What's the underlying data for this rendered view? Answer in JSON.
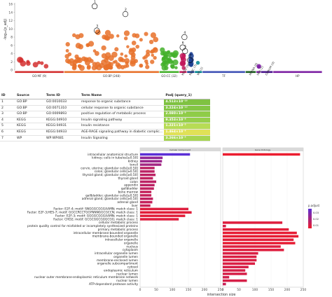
{
  "manhattan": {
    "ylabel": "-log₁₀(p_adj)",
    "yticks": [
      0,
      2,
      4,
      6,
      8,
      10,
      12,
      14,
      16
    ],
    "ymax": 16,
    "sources": [
      {
        "label": "GO:MF (9)",
        "color": "#d32f2f",
        "start": 0.0,
        "end": 0.16
      },
      {
        "label": "GO:BP (248)",
        "color": "#e8712a",
        "start": 0.16,
        "end": 0.47
      },
      {
        "label": "GO:CC (32)",
        "color": "#43b02a",
        "start": 0.47,
        "end": 0.535
      },
      {
        "label": "KEGG (9)",
        "color": "#c2185b",
        "start": 0.535,
        "end": 0.56
      },
      {
        "label": "REAC (7)",
        "color": "#1a3d8f",
        "start": 0.56,
        "end": 0.585
      },
      {
        "label": "WP (1)",
        "color": "#00838f",
        "start": 0.585,
        "end": 0.61
      },
      {
        "label": "TF",
        "color": "#3f51b5",
        "start": 0.61,
        "end": 0.75
      },
      {
        "label": "MIRNA (0)",
        "color": "#1b5e20",
        "start": 0.75,
        "end": 0.785
      },
      {
        "label": "HPA (1)",
        "color": "#7b1fa2",
        "start": 0.785,
        "end": 0.8
      },
      {
        "label": "CORUM (0)",
        "color": "#4a148c",
        "start": 0.8,
        "end": 0.84
      },
      {
        "label": "HP",
        "color": "#7b1fa2",
        "start": 0.84,
        "end": 1.0
      }
    ],
    "highlights": [
      {
        "label": "1",
        "x": 0.26,
        "y": 15.5
      },
      {
        "label": "2",
        "x": 0.36,
        "y": 13.6
      },
      {
        "label": "3",
        "x": 0.267,
        "y": 9.6
      },
      {
        "label": "4",
        "x": 0.552,
        "y": 8.0
      },
      {
        "label": "5",
        "x": 0.554,
        "y": 4.6
      },
      {
        "label": "6",
        "x": 0.546,
        "y": 5.5
      },
      {
        "label": "7",
        "x": 0.57,
        "y": 2.4
      }
    ]
  },
  "table": {
    "headers": [
      "ID",
      "Source",
      "Term ID",
      "Term Name",
      "Padj (query_1)"
    ],
    "rows": [
      {
        "id": "1",
        "source": "GO:BP",
        "term_id": "GO:0010033",
        "name": "response to organic substance",
        "padj": "4.513×10⁻¹⁶",
        "color": "#7fc241"
      },
      {
        "id": "2",
        "source": "GO:BP",
        "term_id": "GO:0071310",
        "name": "cellular response to organic substance",
        "padj": "3.224×10⁻¹³",
        "color": "#84c645"
      },
      {
        "id": "3",
        "source": "GO:BP",
        "term_id": "GO:0009893",
        "name": "positive regulation of metabolic process",
        "padj": "2.080×10⁻⁹",
        "color": "#8fcc48"
      },
      {
        "id": "4",
        "source": "KEGG",
        "term_id": "KEGG:04910",
        "name": "Insulin signaling pathway",
        "padj": "9.353×10⁻⁹",
        "color": "#96cf4a"
      },
      {
        "id": "5",
        "source": "KEGG",
        "term_id": "KEGG:04931",
        "name": "Insulin resistance",
        "padj": "1.221×10⁻⁵",
        "color": "#b7dc55"
      },
      {
        "id": "6",
        "source": "KEGG",
        "term_id": "KEGG:04933",
        "name": "AGE-RAGE signaling pathway in diabetic complic…",
        "padj": "1.464×10⁻⁴",
        "color": "#e0e157"
      },
      {
        "id": "7",
        "source": "WP",
        "term_id": "WP:WP481",
        "name": "Insulin Signaling",
        "padj": "3.266×10⁻⁴",
        "color": "#a6d551"
      }
    ]
  },
  "chart_data": {
    "type": "bar",
    "title": "",
    "xlabel": "intersection size",
    "facets": [
      "Cellular Component",
      "Gene Ontology"
    ],
    "xlim": [
      0,
      250
    ],
    "xticks": [
      0,
      50,
      100,
      150,
      200,
      250
    ],
    "legend": {
      "title": "p.adjust",
      "position": "right",
      "ticks": [
        "0.01",
        "0.02",
        "0.03"
      ],
      "low_color": "#ef1c2a",
      "high_color": "#5b2fd6"
    },
    "categories": [
      "intracellular anatomical structure",
      "kidney; cells in tubules[≥0.50]",
      "kidney",
      "tonsil",
      "cervix, uterine; glandular cells[≥0.50]",
      "colon; glandular cells[≥0.50]",
      "thyroid gland; glandular cells[≥0.50]",
      "thyroid gland",
      "colon",
      "appendix",
      "gallbladder",
      "bone marrow",
      "gallbladder; glandular cells[≥0.50]",
      "adrenal gland; glandular cells[≥0.50]",
      "adrenal gland",
      "liver",
      "Factor: E2F-4; motif: SNGGGCGGGAAMN; match class: 1",
      "Factor: E2F-3;HES-7; motif: GGCCRCCTGGYNNNGGCGCCN; match class: 1",
      "Factor: E2F-3; motif: GGGGCGGGAAMN; match class: 1",
      "Factor: CHD2; motif: GCGCGGCGGGCGG; match class: 1",
      "cellular metabolic process",
      "protein quality control for misfolded or incompletely synthesized proteins",
      "primary metabolic process",
      "intracellular membrane-bounded organelle",
      "membrane-bounded organelle",
      "intracellular organelle",
      "organelle",
      "nucleus",
      "cytoplasm",
      "intracellular organelle lumen",
      "organelle lumen",
      "membrane-enclosed lumen",
      "organelle subcompartment",
      "cytosol",
      "endoplasmic reticulum",
      "nuclear lumen",
      "nuclear outer membrane-endoplasmic reticulum membrane network",
      "nuclear lumen",
      "ATP-dependent protease activity"
    ],
    "series": [
      {
        "name": "Cellular Component",
        "values": [
          155,
          70,
          68,
          66,
          45,
          45,
          48,
          40,
          50,
          45,
          43,
          35,
          35,
          40,
          38,
          32,
          150,
          160,
          140,
          120,
          0,
          0,
          0,
          0,
          0,
          0,
          0,
          0,
          0,
          0,
          0,
          0,
          0,
          0,
          0,
          0,
          0,
          0,
          0
        ],
        "p_adjust": [
          0.035,
          0.022,
          0.02,
          0.018,
          0.012,
          0.012,
          0.012,
          0.011,
          0.012,
          0.012,
          0.011,
          0.01,
          0.01,
          0.011,
          0.01,
          0.009,
          0.004,
          0.003,
          0.003,
          0.004,
          0,
          0,
          0,
          0,
          0,
          0,
          0,
          0,
          0,
          0,
          0,
          0,
          0,
          0,
          0,
          0,
          0,
          0,
          0
        ]
      },
      {
        "name": "Gene Ontology",
        "values": [
          240,
          0,
          0,
          0,
          0,
          0,
          0,
          0,
          0,
          0,
          0,
          0,
          0,
          0,
          0,
          0,
          0,
          0,
          0,
          0,
          185,
          10,
          205,
          230,
          235,
          220,
          225,
          180,
          190,
          110,
          105,
          105,
          100,
          80,
          70,
          75,
          20,
          75,
          10
        ],
        "p_adjust": [
          0.001,
          0,
          0,
          0,
          0,
          0,
          0,
          0,
          0,
          0,
          0,
          0,
          0,
          0,
          0,
          0,
          0,
          0,
          0,
          0,
          0.004,
          0.006,
          0.003,
          0.002,
          0.002,
          0.003,
          0.002,
          0.004,
          0.004,
          0.005,
          0.005,
          0.005,
          0.005,
          0.006,
          0.006,
          0.006,
          0.007,
          0.006,
          0.009
        ]
      }
    ]
  }
}
